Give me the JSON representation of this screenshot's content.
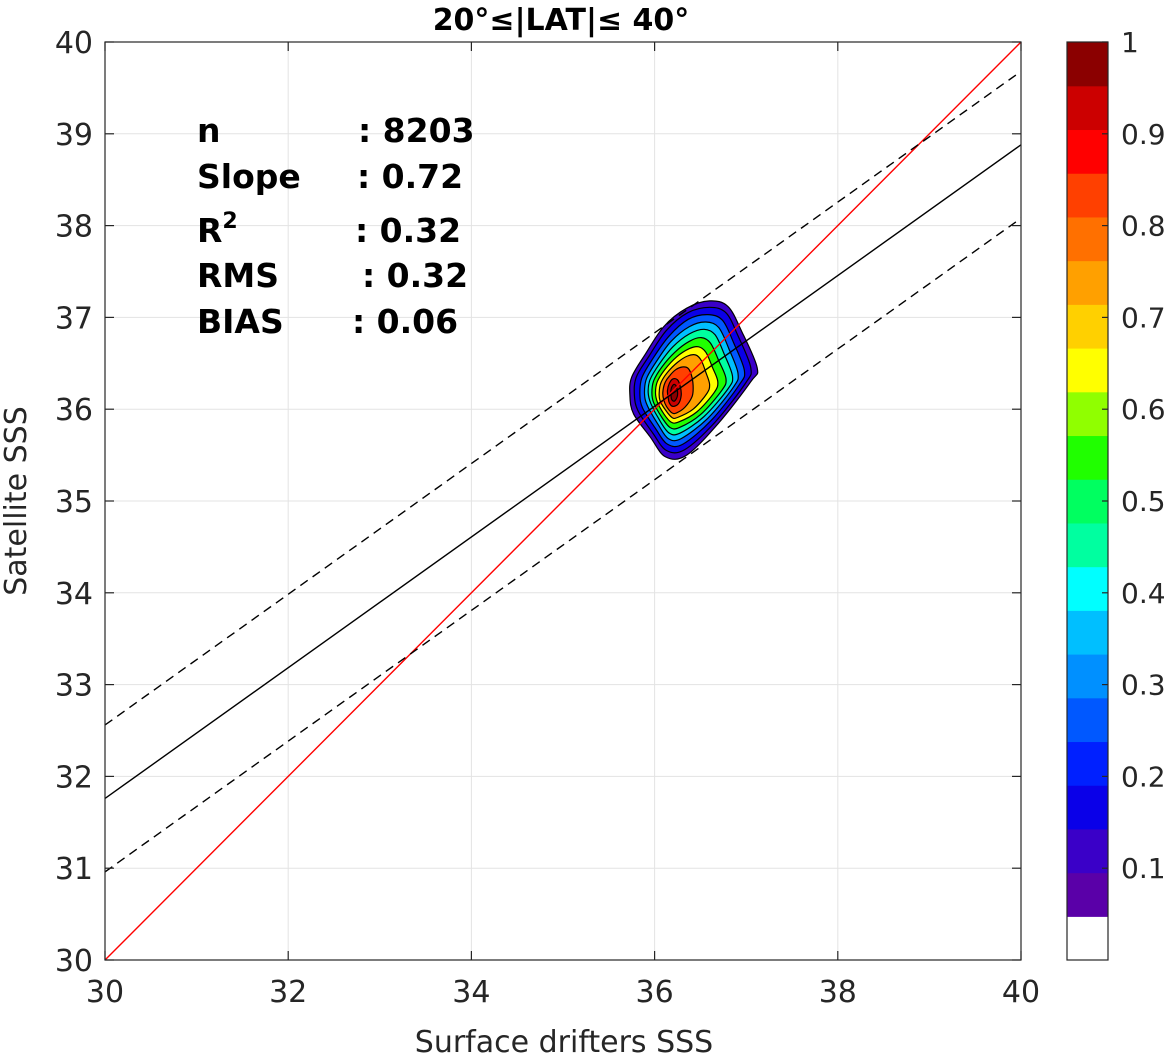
{
  "chart_data": {
    "type": "scatter",
    "title": "20°≤|LAT|≤ 40°",
    "xlabel": "Surface drifters SSS",
    "ylabel": "Satellite SSS",
    "xlim": [
      30,
      40
    ],
    "ylim": [
      30,
      40
    ],
    "xticks": [
      30,
      32,
      34,
      36,
      38,
      40
    ],
    "yticks": [
      30,
      31,
      32,
      33,
      34,
      35,
      36,
      37,
      38,
      39,
      40
    ],
    "grid": true,
    "stats": [
      {
        "label": "n",
        "value": ": 8203"
      },
      {
        "label": "Slope",
        "value": ": 0.72"
      },
      {
        "label": "R",
        "sup": "2",
        "value": ": 0.32"
      },
      {
        "label": "RMS",
        "value": ": 0.32"
      },
      {
        "label": "BIAS",
        "value": ": 0.06"
      }
    ],
    "lines": [
      {
        "name": "one-to-one",
        "color": "#ff0000",
        "style": "solid",
        "x": [
          30,
          40
        ],
        "y": [
          30,
          40
        ]
      },
      {
        "name": "regression",
        "color": "#000000",
        "style": "solid",
        "x": [
          30,
          40
        ],
        "y": [
          31.76,
          38.88
        ]
      },
      {
        "name": "upper-bound",
        "color": "#000000",
        "style": "dashed",
        "x": [
          30,
          40
        ],
        "y": [
          32.56,
          39.68
        ]
      },
      {
        "name": "lower-bound",
        "color": "#000000",
        "style": "dashed",
        "x": [
          30,
          40
        ],
        "y": [
          30.96,
          38.08
        ]
      }
    ],
    "density": {
      "peak": [
        36.22,
        36.2
      ],
      "level_colors": [
        "#4b00a0",
        "#2a00cc",
        "#0010ff",
        "#0050ff",
        "#0090ff",
        "#00c8ff",
        "#00ffff",
        "#00ffa0",
        "#00ff50",
        "#30ff00",
        "#a0ff00",
        "#ffff00",
        "#ffd000",
        "#ffa000",
        "#ff7000",
        "#ff4000",
        "#ff0000",
        "#cc0000",
        "#8b0000"
      ],
      "levels": [
        {
          "level": 0.05,
          "points": [
            [
              35.77,
              35.95
            ],
            [
              35.73,
              36.15
            ],
            [
              35.75,
              36.35
            ],
            [
              35.9,
              36.6
            ],
            [
              36.1,
              36.9
            ],
            [
              36.35,
              37.1
            ],
            [
              36.6,
              37.18
            ],
            [
              36.8,
              37.12
            ],
            [
              36.95,
              36.85
            ],
            [
              37.12,
              36.45
            ],
            [
              37.05,
              36.3
            ],
            [
              36.7,
              35.85
            ],
            [
              36.35,
              35.5
            ],
            [
              36.12,
              35.48
            ],
            [
              35.95,
              35.7
            ]
          ]
        },
        {
          "level": 0.1,
          "points": [
            [
              35.82,
              35.98
            ],
            [
              35.78,
              36.15
            ],
            [
              35.8,
              36.35
            ],
            [
              35.94,
              36.58
            ],
            [
              36.13,
              36.86
            ],
            [
              36.36,
              37.05
            ],
            [
              36.6,
              37.11
            ],
            [
              36.78,
              37.05
            ],
            [
              36.91,
              36.8
            ],
            [
              37.05,
              36.45
            ],
            [
              36.99,
              36.28
            ],
            [
              36.66,
              35.86
            ],
            [
              36.33,
              35.56
            ],
            [
              36.13,
              35.55
            ],
            [
              35.98,
              35.74
            ]
          ]
        },
        {
          "level": 0.2,
          "points": [
            [
              35.87,
              36.01
            ],
            [
              35.84,
              36.16
            ],
            [
              35.86,
              36.34
            ],
            [
              35.98,
              36.55
            ],
            [
              36.16,
              36.8
            ],
            [
              36.37,
              36.98
            ],
            [
              36.58,
              37.03
            ],
            [
              36.74,
              36.97
            ],
            [
              36.86,
              36.73
            ],
            [
              36.98,
              36.42
            ],
            [
              36.92,
              36.26
            ],
            [
              36.62,
              35.88
            ],
            [
              36.31,
              35.62
            ],
            [
              36.14,
              35.62
            ],
            [
              36.01,
              35.79
            ]
          ]
        },
        {
          "level": 0.3,
          "points": [
            [
              35.92,
              36.04
            ],
            [
              35.89,
              36.17
            ],
            [
              35.91,
              36.33
            ],
            [
              36.02,
              36.52
            ],
            [
              36.18,
              36.74
            ],
            [
              36.38,
              36.9
            ],
            [
              36.56,
              36.95
            ],
            [
              36.7,
              36.89
            ],
            [
              36.81,
              36.66
            ],
            [
              36.91,
              36.39
            ],
            [
              36.86,
              36.24
            ],
            [
              36.58,
              35.9
            ],
            [
              36.29,
              35.68
            ],
            [
              36.15,
              35.68
            ],
            [
              36.04,
              35.83
            ]
          ]
        },
        {
          "level": 0.4,
          "points": [
            [
              35.96,
              36.06
            ],
            [
              35.93,
              36.18
            ],
            [
              35.95,
              36.32
            ],
            [
              36.05,
              36.49
            ],
            [
              36.2,
              36.68
            ],
            [
              36.38,
              36.82
            ],
            [
              36.54,
              36.87
            ],
            [
              36.66,
              36.81
            ],
            [
              36.76,
              36.6
            ],
            [
              36.85,
              36.36
            ],
            [
              36.8,
              36.22
            ],
            [
              36.54,
              35.92
            ],
            [
              36.28,
              35.74
            ],
            [
              36.16,
              35.74
            ],
            [
              36.06,
              35.87
            ]
          ]
        },
        {
          "level": 0.5,
          "points": [
            [
              35.99,
              36.07
            ],
            [
              35.97,
              36.18
            ],
            [
              35.99,
              36.31
            ],
            [
              36.08,
              36.46
            ],
            [
              36.22,
              36.62
            ],
            [
              36.38,
              36.74
            ],
            [
              36.51,
              36.78
            ],
            [
              36.61,
              36.72
            ],
            [
              36.7,
              36.53
            ],
            [
              36.78,
              36.33
            ],
            [
              36.73,
              36.2
            ],
            [
              36.5,
              35.94
            ],
            [
              36.27,
              35.8
            ],
            [
              36.17,
              35.8
            ],
            [
              36.08,
              35.91
            ]
          ]
        },
        {
          "level": 0.6,
          "points": [
            [
              36.03,
              36.08
            ],
            [
              36.01,
              36.18
            ],
            [
              36.03,
              36.3
            ],
            [
              36.11,
              36.43
            ],
            [
              36.24,
              36.57
            ],
            [
              36.38,
              36.66
            ],
            [
              36.48,
              36.68
            ],
            [
              36.56,
              36.62
            ],
            [
              36.63,
              36.46
            ],
            [
              36.69,
              36.3
            ],
            [
              36.65,
              36.18
            ],
            [
              36.46,
              35.97
            ],
            [
              36.26,
              35.86
            ],
            [
              36.18,
              35.86
            ],
            [
              36.1,
              35.95
            ]
          ]
        },
        {
          "level": 0.7,
          "points": [
            [
              36.06,
              36.09
            ],
            [
              36.05,
              36.18
            ],
            [
              36.07,
              36.29
            ],
            [
              36.14,
              36.4
            ],
            [
              36.25,
              36.51
            ],
            [
              36.36,
              36.58
            ],
            [
              36.45,
              36.59
            ],
            [
              36.51,
              36.53
            ],
            [
              36.56,
              36.4
            ],
            [
              36.6,
              36.27
            ],
            [
              36.57,
              36.17
            ],
            [
              36.42,
              36.0
            ],
            [
              36.25,
              35.91
            ],
            [
              36.19,
              35.91
            ],
            [
              36.12,
              35.99
            ]
          ]
        },
        {
          "level": 0.8,
          "points": [
            [
              36.1,
              36.1
            ],
            [
              36.09,
              36.18
            ],
            [
              36.11,
              36.28
            ],
            [
              36.16,
              36.36
            ],
            [
              36.23,
              36.43
            ],
            [
              36.3,
              36.46
            ],
            [
              36.36,
              36.45
            ],
            [
              36.4,
              36.38
            ],
            [
              36.42,
              36.26
            ],
            [
              36.41,
              36.14
            ],
            [
              36.33,
              36.02
            ],
            [
              36.24,
              35.96
            ],
            [
              36.19,
              35.96
            ],
            [
              36.13,
              36.03
            ]
          ]
        },
        {
          "level": 0.9,
          "points": [
            [
              36.15,
              36.12
            ],
            [
              36.14,
              36.2
            ],
            [
              36.16,
              36.28
            ],
            [
              36.2,
              36.33
            ],
            [
              36.25,
              36.32
            ],
            [
              36.28,
              36.25
            ],
            [
              36.29,
              36.15
            ],
            [
              36.26,
              36.06
            ],
            [
              36.2,
              36.03
            ],
            [
              36.16,
              36.07
            ]
          ]
        },
        {
          "level": 0.95,
          "points": [
            [
              36.18,
              36.14
            ],
            [
              36.18,
              36.22
            ],
            [
              36.21,
              36.27
            ],
            [
              36.24,
              36.24
            ],
            [
              36.25,
              36.15
            ],
            [
              36.22,
              36.09
            ],
            [
              36.19,
              36.1
            ]
          ]
        }
      ]
    },
    "colorbar": {
      "ticks": [
        0.1,
        0.2,
        0.3,
        0.4,
        0.5,
        0.6,
        0.7,
        0.8,
        0.9,
        1
      ],
      "tick_labels": [
        "0.1",
        "0.2",
        "0.3",
        "0.4",
        "0.5",
        "0.6",
        "0.7",
        "0.8",
        "0.9",
        "1"
      ],
      "range": [
        0,
        1
      ],
      "colors": [
        "#ffffff",
        "#5a00a8",
        "#3a00c8",
        "#0a00e8",
        "#0020ff",
        "#0058ff",
        "#0090ff",
        "#00bfff",
        "#00ffff",
        "#00ffa0",
        "#00ff60",
        "#20ff00",
        "#90ff00",
        "#ffff00",
        "#ffd000",
        "#ffa000",
        "#ff7000",
        "#ff4000",
        "#ff0000",
        "#cc0000",
        "#8b0000"
      ]
    }
  }
}
